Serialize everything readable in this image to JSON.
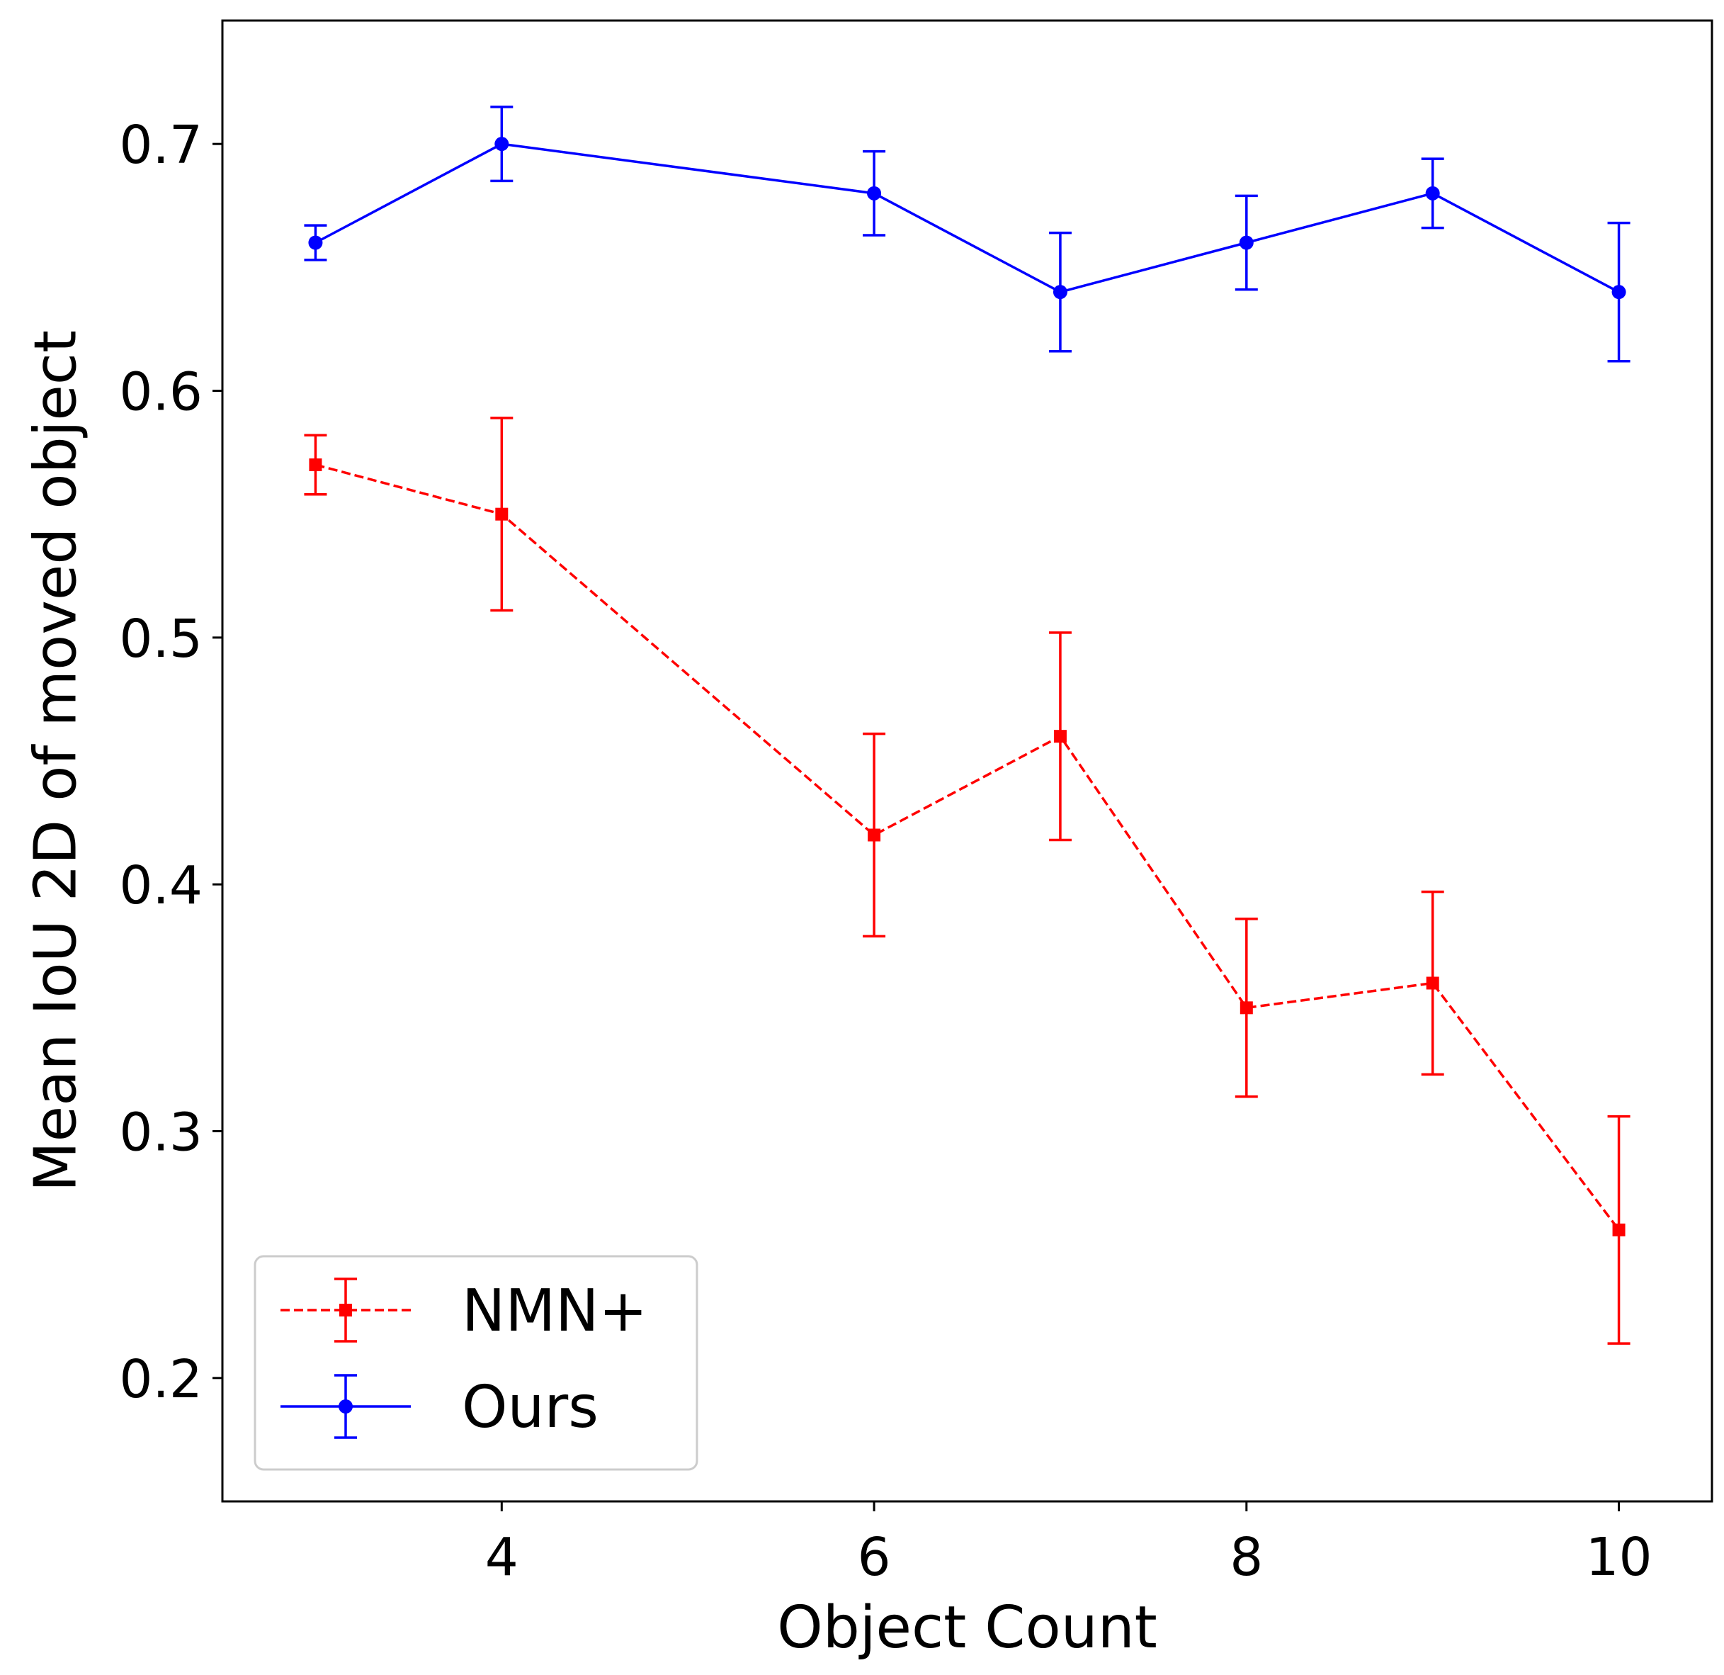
{
  "chart_data": {
    "type": "line",
    "title": "",
    "xlabel": "Object Count",
    "ylabel": "Mean IoU 2D of moved object",
    "xlim": [
      2.5,
      10.5
    ],
    "ylim": [
      0.15,
      0.75
    ],
    "xticks": [
      4,
      6,
      8,
      10
    ],
    "xtick_labels": [
      "4",
      "6",
      "8",
      "10"
    ],
    "yticks": [
      0.2,
      0.3,
      0.4,
      0.5,
      0.6,
      0.7
    ],
    "ytick_labels": [
      "0.2",
      "0.3",
      "0.4",
      "0.5",
      "0.6",
      "0.7"
    ],
    "grid": false,
    "legend_position": "bottom-left",
    "x": [
      3,
      4,
      6,
      7,
      8,
      9,
      10
    ],
    "series": [
      {
        "name": "NMN+",
        "color": "#ff0000",
        "line_style": "dashed",
        "marker": "square",
        "values": [
          0.57,
          0.55,
          0.42,
          0.46,
          0.35,
          0.36,
          0.26
        ],
        "error_low": [
          0.558,
          0.511,
          0.379,
          0.418,
          0.314,
          0.323,
          0.214
        ],
        "error_high": [
          0.582,
          0.589,
          0.461,
          0.502,
          0.386,
          0.397,
          0.306
        ]
      },
      {
        "name": "Ours",
        "color": "#0000ff",
        "line_style": "solid",
        "marker": "circle",
        "values": [
          0.66,
          0.7,
          0.68,
          0.64,
          0.66,
          0.68,
          0.64
        ],
        "error_low": [
          0.653,
          0.685,
          0.663,
          0.616,
          0.641,
          0.666,
          0.612
        ],
        "error_high": [
          0.667,
          0.715,
          0.697,
          0.664,
          0.679,
          0.694,
          0.668
        ]
      }
    ]
  }
}
